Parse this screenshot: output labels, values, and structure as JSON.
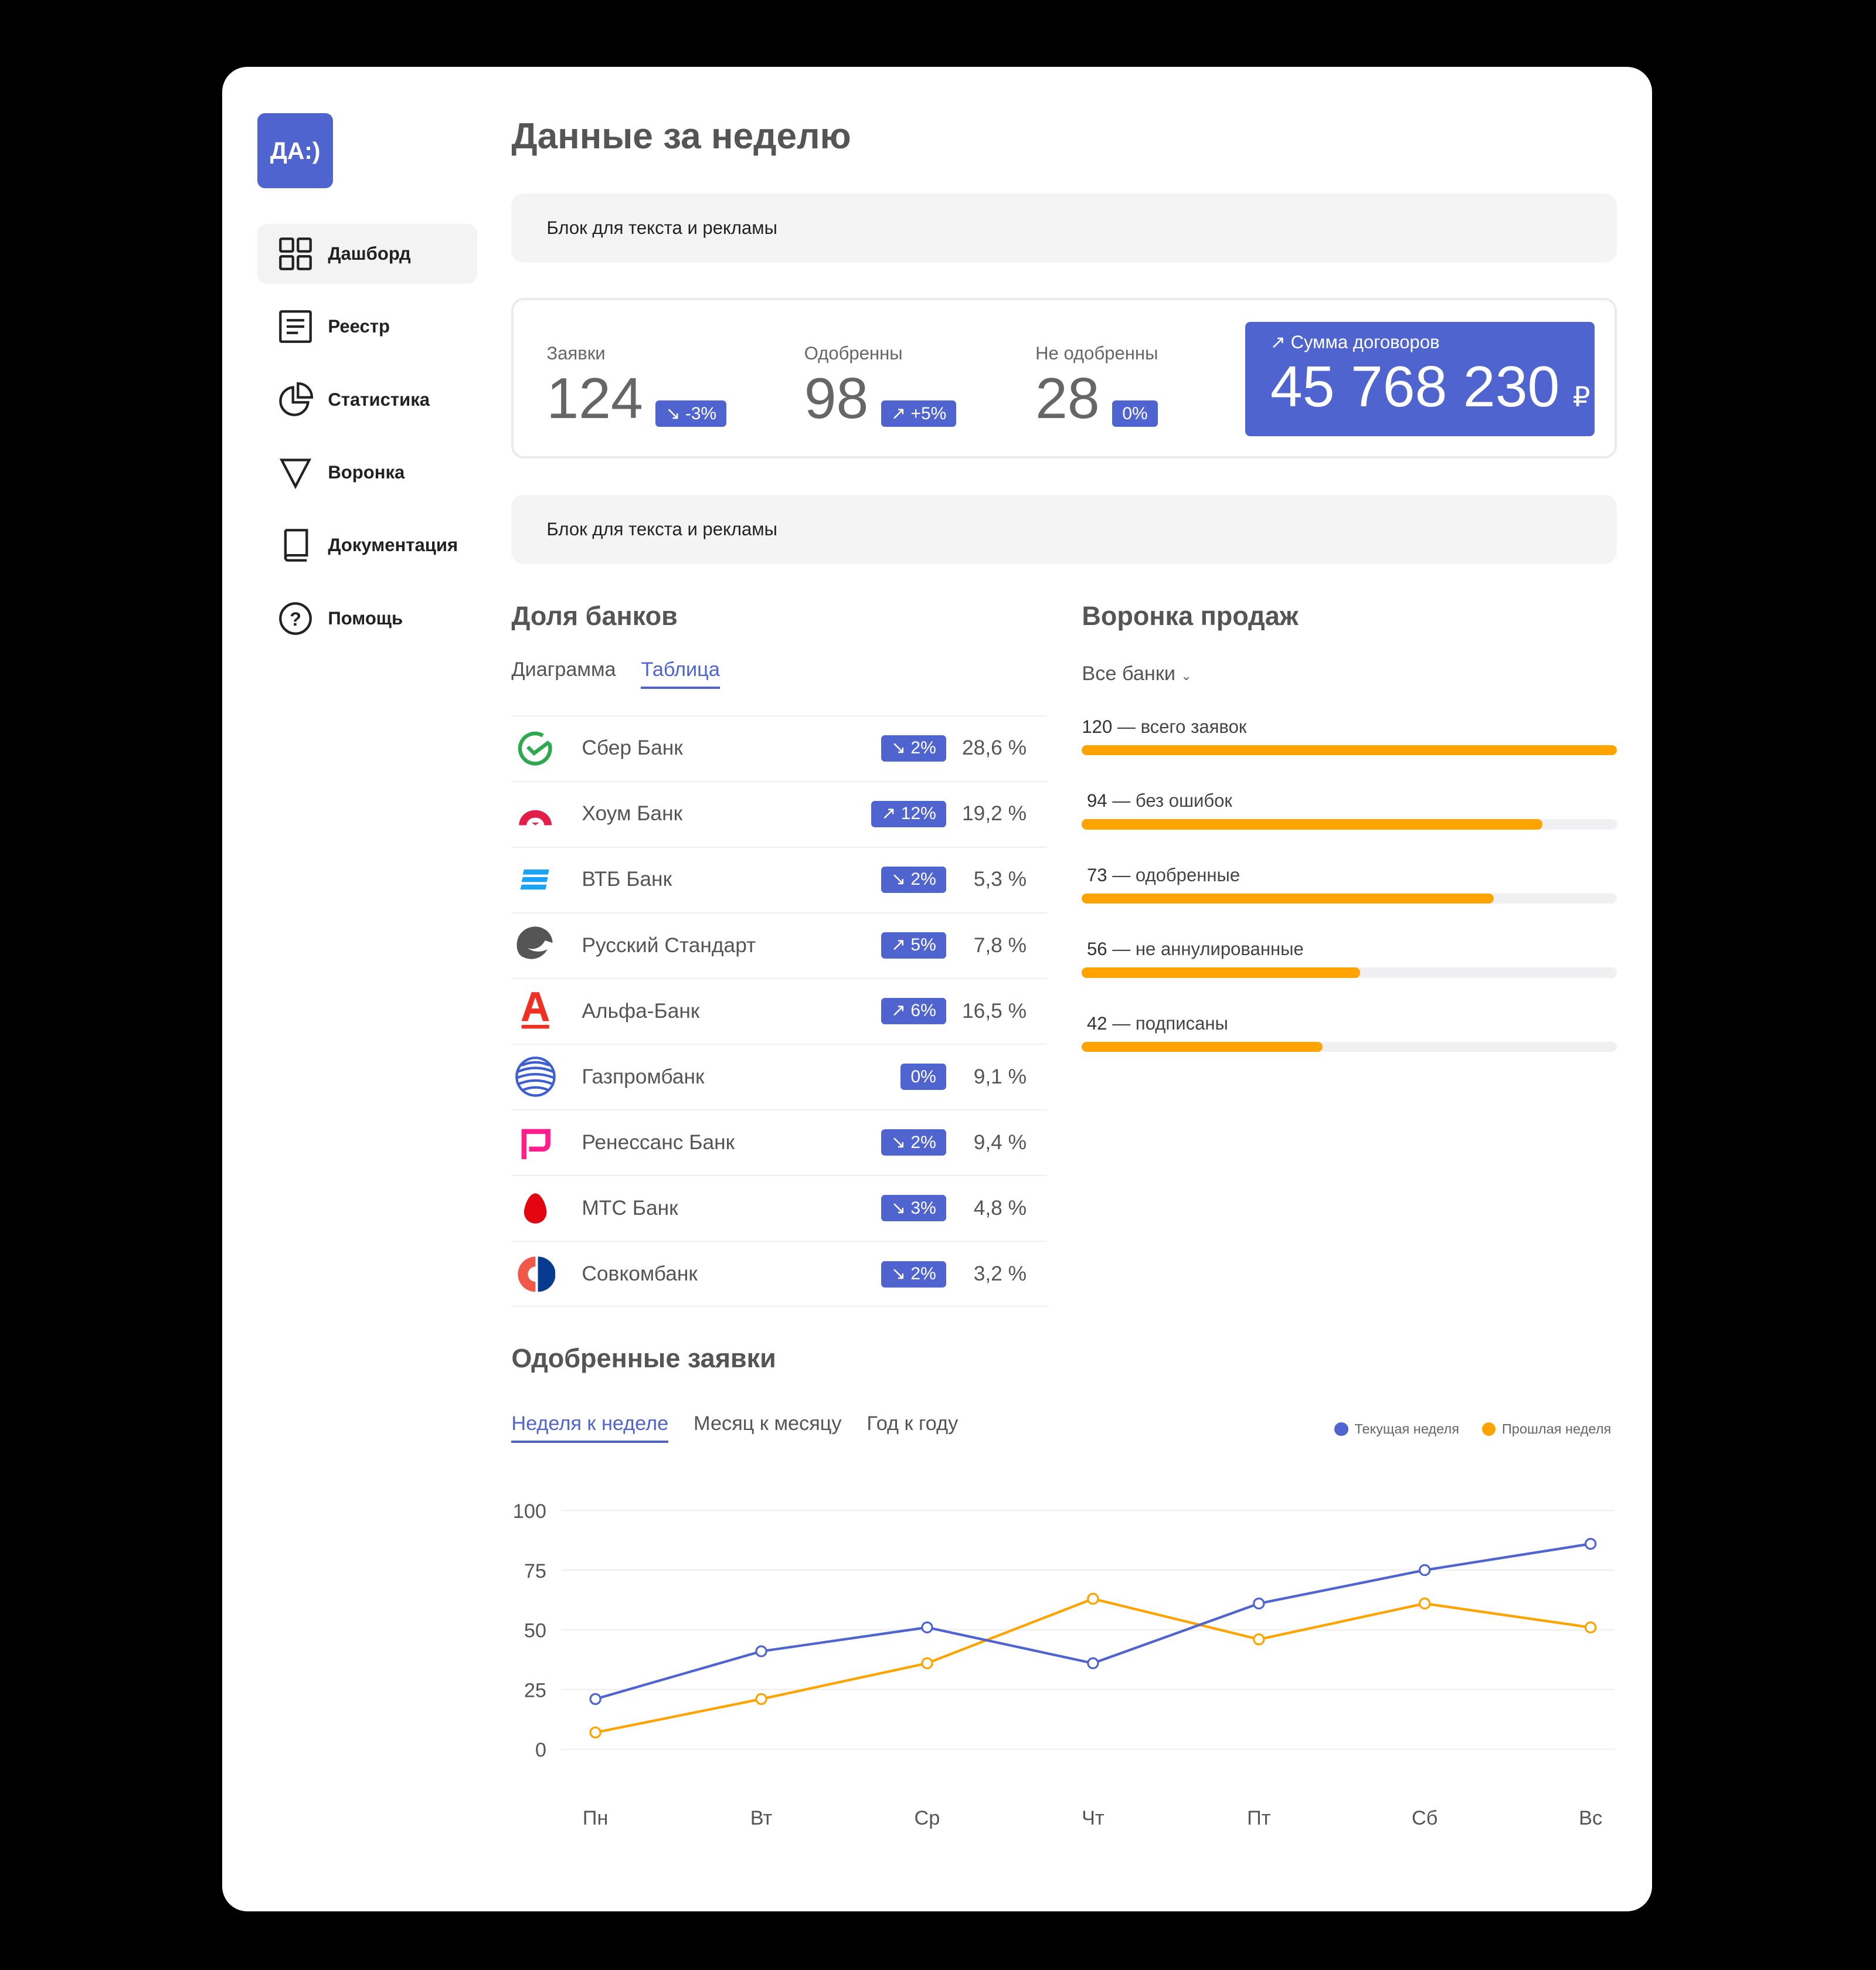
{
  "logo": "ДА:)",
  "nav": [
    {
      "label": "Дашборд",
      "icon": "grid-icon"
    },
    {
      "label": "Реестр",
      "icon": "document-icon"
    },
    {
      "label": "Статистика",
      "icon": "pie-chart-icon"
    },
    {
      "label": "Воронка",
      "icon": "funnel-icon"
    },
    {
      "label": "Документация",
      "icon": "book-icon"
    },
    {
      "label": "Помощь",
      "icon": "help-icon"
    }
  ],
  "title": "Данные за неделю",
  "ad1": "Блок для текста и рекламы",
  "ad2": "Блок для текста и рекламы",
  "stats": [
    {
      "label": "Заявки",
      "value": "124",
      "change": "↘ -3%"
    },
    {
      "label": "Одобренны",
      "value": "98",
      "change": "↗ +5%"
    },
    {
      "label": "Не одобренны",
      "value": "28",
      "change": "0%"
    }
  ],
  "sum": {
    "label": "↗ Сумма договоров",
    "value": "45 768 230",
    "currency": "₽"
  },
  "banks": {
    "title": "Доля банков",
    "tabs": [
      "Диаграмма",
      "Таблица"
    ],
    "active_tab": "Таблица",
    "rows": [
      {
        "name": "Сбер Банк",
        "change": "↘ 2%",
        "share": "28,6 %"
      },
      {
        "name": "Хоум Банк",
        "change": "↗ 12%",
        "share": "19,2 %"
      },
      {
        "name": "ВТБ Банк",
        "change": "↘ 2%",
        "share": "5,3 %"
      },
      {
        "name": "Русский Стандарт",
        "change": "↗ 5%",
        "share": "7,8 %"
      },
      {
        "name": "Альфа-Банк",
        "change": "↗ 6%",
        "share": "16,5 %"
      },
      {
        "name": "Газпромбанк",
        "change": "0%",
        "share": "9,1 %"
      },
      {
        "name": "Ренессанс Банк",
        "change": "↘ 2%",
        "share": "9,4 %"
      },
      {
        "name": "МТС Банк",
        "change": "↘ 3%",
        "share": "4,8 %"
      },
      {
        "name": "Совкомбанк",
        "change": "↘ 2%",
        "share": "3,2 %"
      }
    ]
  },
  "funnel": {
    "title": "Воронка продаж",
    "filter": "Все банки",
    "filter_icon": "chevron-down-icon",
    "stages": [
      {
        "value": "120",
        "label": "— всего заявок",
        "fill_pct": 100
      },
      {
        "value": "94",
        "label": "— без ошибок",
        "fill_pct": 86
      },
      {
        "value": "73",
        "label": "— одобренные",
        "fill_pct": 77
      },
      {
        "value": "56",
        "label": "— не аннулированные",
        "fill_pct": 52
      },
      {
        "value": "42",
        "label": "— подписаны",
        "fill_pct": 45
      }
    ]
  },
  "approved": {
    "title": "Одобренные заявки",
    "tabs": [
      "Неделя к неделе",
      "Месяц к месяцу",
      "Год к году"
    ],
    "active_tab": "Неделя к неделе"
  },
  "chart_data": {
    "type": "line",
    "categories": [
      "Пн",
      "Вт",
      "Ср",
      "Чт",
      "Пт",
      "Сб",
      "Вс"
    ],
    "ylim": [
      0,
      100
    ],
    "yticks": [
      "0",
      "25",
      "50",
      "75",
      "100"
    ],
    "grid": true,
    "legend_position": "top-right",
    "series": [
      {
        "name": "Текущая неделя",
        "color": "#5064d0",
        "values": [
          21,
          41,
          51,
          36,
          61,
          75,
          86
        ]
      },
      {
        "name": "Прошлая неделя",
        "color": "#ffa300",
        "values": [
          7,
          21,
          36,
          63,
          46,
          61,
          51
        ]
      }
    ]
  }
}
